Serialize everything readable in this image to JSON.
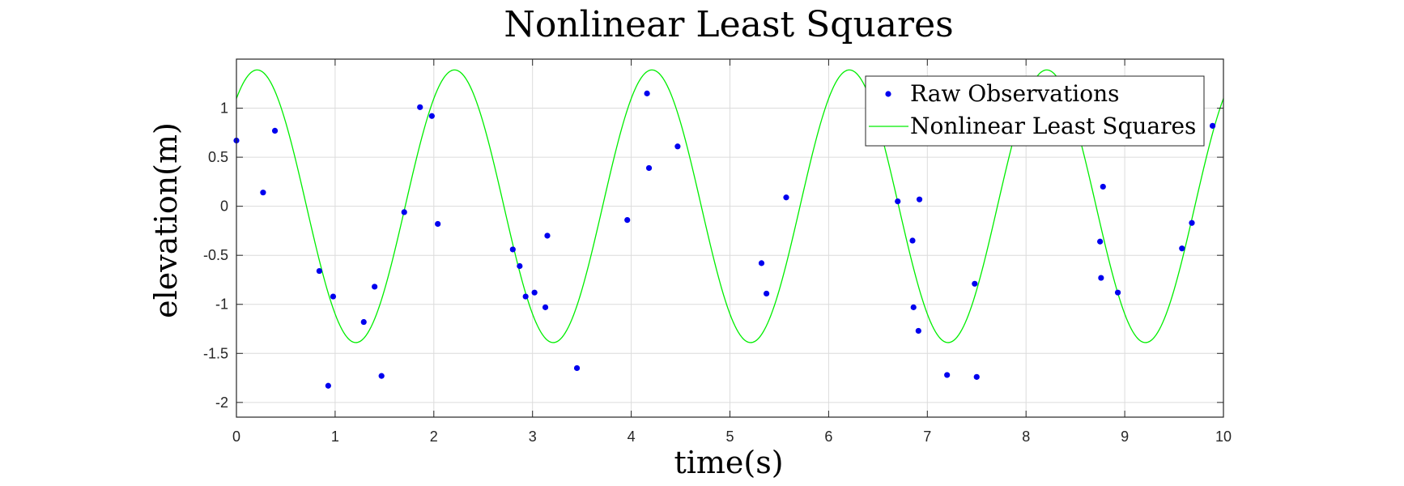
{
  "chart_data": {
    "type": "scatter",
    "title": "Nonlinear Least Squares",
    "xlabel": "time(s)",
    "ylabel": "elevation(m)",
    "xlim": [
      0,
      10
    ],
    "ylim": [
      -2.15,
      1.5
    ],
    "xticks": [
      0,
      1,
      2,
      3,
      4,
      5,
      6,
      7,
      8,
      9,
      10
    ],
    "xtick_labels": [
      "0",
      "1",
      "2",
      "3",
      "4",
      "5",
      "6",
      "7",
      "8",
      "9",
      "10"
    ],
    "yticks": [
      1,
      0.5,
      0,
      -0.5,
      -1,
      -1.5,
      -2
    ],
    "ytick_labels": [
      "1",
      "0.5",
      "0",
      "-0.5",
      "-1",
      "-1.5",
      "-2"
    ],
    "grid": true,
    "legend_position": "top-right",
    "series": [
      {
        "name": "Raw Observations",
        "kind": "scatter",
        "color": "#0000ee",
        "x": [
          0.0,
          0.27,
          0.39,
          0.84,
          0.98,
          0.93,
          1.29,
          1.4,
          1.47,
          1.7,
          1.86,
          1.98,
          2.04,
          2.8,
          2.87,
          2.93,
          3.02,
          3.13,
          3.15,
          3.45,
          3.96,
          4.16,
          4.18,
          4.47,
          5.32,
          5.37,
          5.57,
          6.7,
          6.85,
          6.86,
          6.91,
          6.92,
          7.2,
          7.48,
          7.5,
          8.75,
          8.76,
          8.78,
          8.93,
          9.58,
          9.68,
          9.89
        ],
        "y": [
          0.67,
          0.14,
          0.77,
          -0.66,
          -0.92,
          -1.83,
          -1.18,
          -0.82,
          -1.73,
          -0.06,
          1.01,
          0.92,
          -0.18,
          -0.44,
          -0.61,
          -0.92,
          -0.88,
          -1.03,
          -0.3,
          -1.65,
          -0.14,
          1.15,
          0.39,
          0.61,
          -0.58,
          -0.89,
          0.09,
          0.05,
          -0.35,
          -1.03,
          -1.27,
          0.07,
          -1.72,
          -0.79,
          -1.74,
          -0.36,
          -0.73,
          0.2,
          -0.88,
          -0.43,
          -0.17,
          0.82
        ]
      },
      {
        "name": "Nonlinear Least Squares",
        "kind": "line",
        "color": "#00ee00",
        "amplitude": 1.39,
        "period": 2.0,
        "phase_peak_x": 0.21
      }
    ]
  }
}
